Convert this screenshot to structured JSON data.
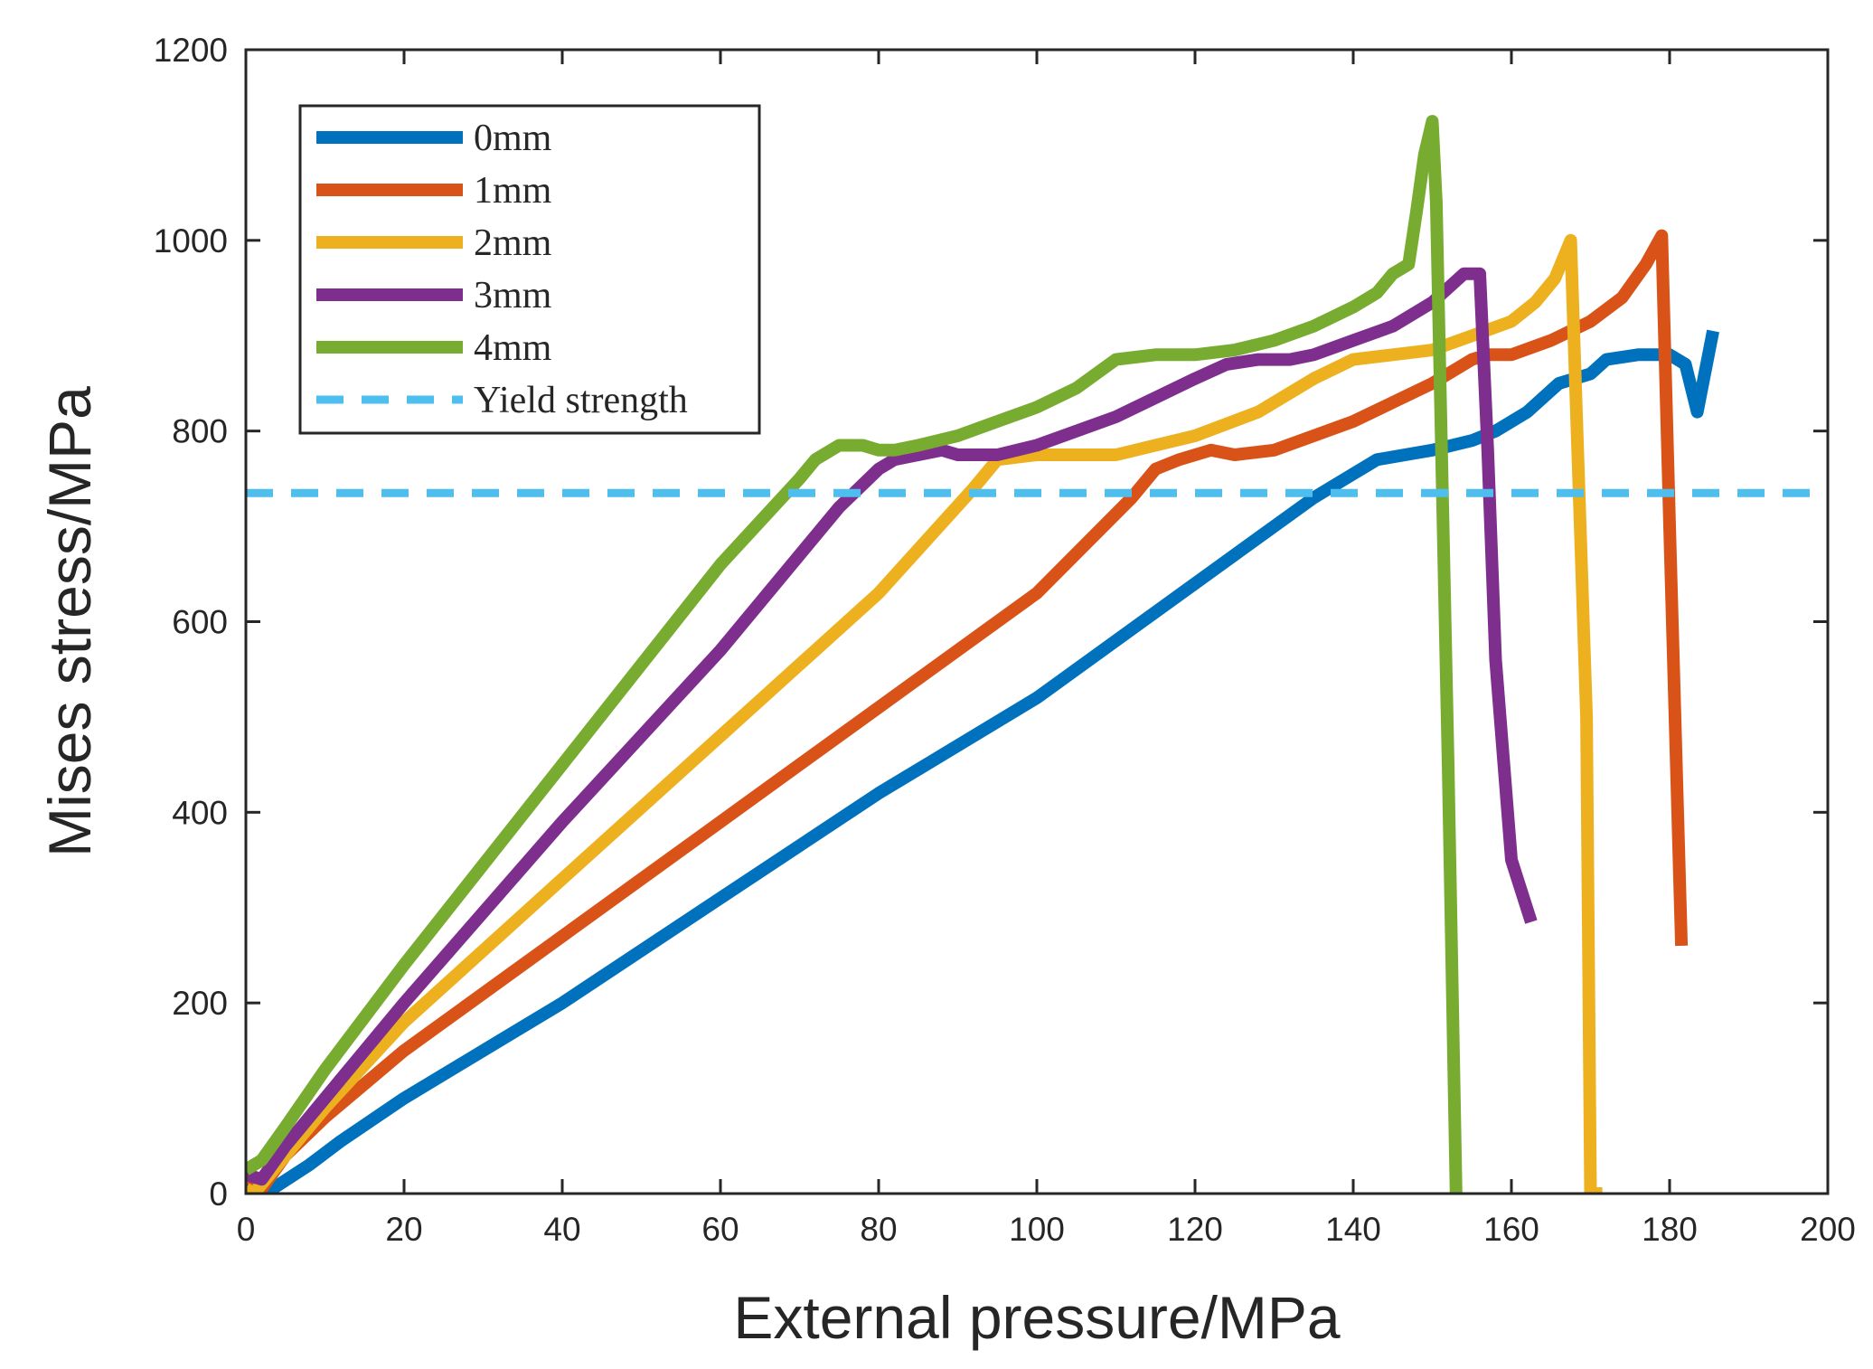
{
  "chart_data": {
    "type": "line",
    "xlabel": "External pressure/MPa",
    "ylabel": "Mises stress/MPa",
    "xlim": [
      0,
      200
    ],
    "ylim": [
      0,
      1200
    ],
    "xticks": [
      0,
      20,
      40,
      60,
      80,
      100,
      120,
      140,
      160,
      180,
      200
    ],
    "yticks": [
      0,
      200,
      400,
      600,
      800,
      1000,
      1200
    ],
    "grid": false,
    "legend_position": "top-left",
    "series": [
      {
        "name": "0mm",
        "color": "#0072BD",
        "style": "solid",
        "x": [
          0,
          3,
          8,
          12,
          20,
          40,
          60,
          80,
          100,
          120,
          135,
          140,
          143,
          150,
          155,
          158,
          162,
          166,
          170,
          172,
          176,
          180,
          182,
          183.5,
          185.5
        ],
        "y": [
          5,
          3,
          30,
          55,
          100,
          200,
          310,
          420,
          520,
          640,
          730,
          755,
          770,
          780,
          790,
          800,
          820,
          850,
          860,
          875,
          880,
          880,
          870,
          820,
          905
        ]
      },
      {
        "name": "1mm",
        "color": "#D95319",
        "style": "solid",
        "x": [
          0,
          2,
          5,
          10,
          20,
          40,
          60,
          80,
          100,
          112,
          115,
          118,
          122,
          125,
          130,
          135,
          140,
          145,
          150,
          155,
          157,
          160,
          165,
          170,
          174,
          177,
          179,
          180,
          181.5
        ],
        "y": [
          20,
          5,
          40,
          80,
          150,
          270,
          390,
          510,
          630,
          730,
          760,
          770,
          780,
          775,
          780,
          795,
          810,
          830,
          850,
          875,
          880,
          880,
          895,
          915,
          940,
          975,
          1005,
          700,
          260
        ]
      },
      {
        "name": "2mm",
        "color": "#EDB120",
        "style": "solid",
        "x": [
          0,
          1,
          5,
          10,
          20,
          40,
          60,
          80,
          92,
          95,
          100,
          110,
          120,
          128,
          135,
          140,
          145,
          150,
          155,
          160,
          163,
          165.5,
          167.5,
          169.5,
          170,
          171.5
        ],
        "y": [
          5,
          0,
          40,
          90,
          180,
          330,
          480,
          630,
          740,
          770,
          775,
          775,
          795,
          820,
          855,
          875,
          880,
          885,
          900,
          915,
          935,
          960,
          1000,
          500,
          0,
          0
        ]
      },
      {
        "name": "3mm",
        "color": "#7E2F8E",
        "style": "solid",
        "x": [
          0,
          2,
          5,
          10,
          20,
          40,
          60,
          75,
          80,
          82,
          85,
          88,
          90,
          95,
          100,
          110,
          115,
          120,
          124,
          128,
          132,
          135,
          140,
          145,
          150,
          154,
          156,
          157,
          158,
          160,
          162.5
        ],
        "y": [
          20,
          15,
          50,
          100,
          200,
          390,
          570,
          720,
          760,
          770,
          775,
          780,
          775,
          775,
          785,
          815,
          835,
          855,
          870,
          875,
          875,
          880,
          895,
          910,
          935,
          965,
          965,
          780,
          560,
          350,
          285
        ]
      },
      {
        "name": "4mm",
        "color": "#77AC30",
        "style": "solid",
        "x": [
          0,
          2,
          5,
          10,
          20,
          40,
          60,
          70,
          72,
          74,
          75,
          78,
          80,
          82,
          85,
          90,
          95,
          100,
          105,
          110,
          115,
          120,
          125,
          130,
          135,
          140,
          143,
          145,
          147,
          148,
          149,
          150,
          150.5,
          152,
          153
        ],
        "y": [
          25,
          35,
          70,
          130,
          240,
          450,
          660,
          750,
          770,
          780,
          785,
          785,
          780,
          780,
          785,
          795,
          810,
          825,
          845,
          875,
          880,
          880,
          885,
          895,
          910,
          930,
          945,
          965,
          975,
          1030,
          1090,
          1125,
          1040,
          450,
          0
        ]
      },
      {
        "name": "Yield strength",
        "color": "#4DBEEE",
        "style": "dashed",
        "x": [
          0,
          200
        ],
        "y": [
          735,
          735
        ]
      }
    ]
  }
}
